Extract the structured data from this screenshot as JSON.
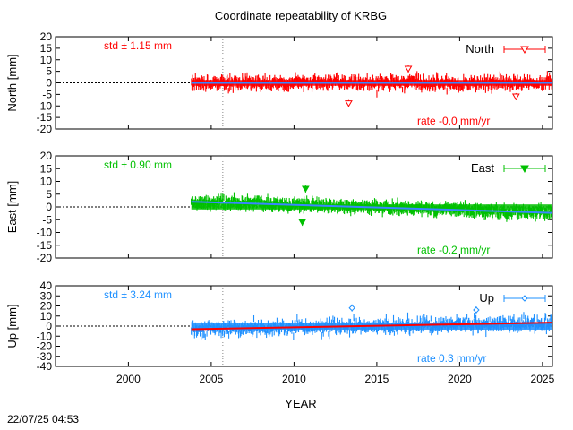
{
  "page_title": "Coordinate repeatability of KRBG",
  "x_axis_label": "YEAR",
  "timestamp": "22/07/25 04:53",
  "chart_data": [
    {
      "type": "scatter",
      "component": "North",
      "legend": "North",
      "ylabel": "North [mm]",
      "std_label": "std ± 1.15 mm",
      "rate_label": "rate -0.0 mm/yr",
      "color": "#ff0000",
      "fit_color": "#3a86ff",
      "marker": "open-triangle-down",
      "x_range": [
        1995.6,
        2025.6
      ],
      "ylim": [
        -20,
        20
      ],
      "yticks": [
        20,
        15,
        10,
        5,
        0,
        -5,
        -10,
        -15,
        -20
      ],
      "xticks": [
        2000,
        2005,
        2010,
        2015,
        2020,
        2025
      ],
      "vlines": [
        2005.7,
        2010.6
      ],
      "data_start": 2003.8,
      "data_end": 2025.55,
      "std": 1.15,
      "rate": -0.0,
      "outliers": [
        {
          "x": 2013.3,
          "y": -9
        },
        {
          "x": 2016.9,
          "y": 6
        },
        {
          "x": 2023.4,
          "y": -6
        }
      ]
    },
    {
      "type": "scatter",
      "component": "East",
      "legend": "East",
      "ylabel": "East [mm]",
      "std_label": "std ± 0.90 mm",
      "rate_label": "rate -0.2 mm/yr",
      "color": "#00c000",
      "fit_color": "#3a86ff",
      "marker": "filled-triangle-down",
      "x_range": [
        1995.6,
        2025.6
      ],
      "ylim": [
        -20,
        20
      ],
      "yticks": [
        20,
        15,
        10,
        5,
        0,
        -5,
        -10,
        -15,
        -20
      ],
      "xticks": [
        2000,
        2005,
        2010,
        2015,
        2020,
        2025
      ],
      "vlines": [
        2005.7,
        2010.6
      ],
      "data_start": 2003.8,
      "data_end": 2025.55,
      "std": 0.9,
      "rate": -0.2,
      "outliers": [
        {
          "x": 2010.7,
          "y": 7
        },
        {
          "x": 2010.5,
          "y": -6
        }
      ]
    },
    {
      "type": "scatter",
      "component": "Up",
      "legend": "Up",
      "ylabel": "Up [mm]",
      "std_label": "std ± 3.24 mm",
      "rate_label": "rate  0.3 mm/yr",
      "color": "#1e90ff",
      "fit_color": "#ff0000",
      "marker": "open-diamond",
      "x_range": [
        1995.6,
        2025.6
      ],
      "ylim": [
        -40,
        40
      ],
      "yticks": [
        40,
        30,
        20,
        10,
        0,
        -10,
        -20,
        -30,
        -40
      ],
      "xticks": [
        2000,
        2005,
        2010,
        2015,
        2020,
        2025
      ],
      "vlines": [
        2005.7,
        2010.6
      ],
      "data_start": 2003.8,
      "data_end": 2025.55,
      "std": 3.24,
      "rate": 0.3,
      "outliers": [
        {
          "x": 2013.5,
          "y": 18
        },
        {
          "x": 2021.0,
          "y": 16
        }
      ]
    }
  ]
}
